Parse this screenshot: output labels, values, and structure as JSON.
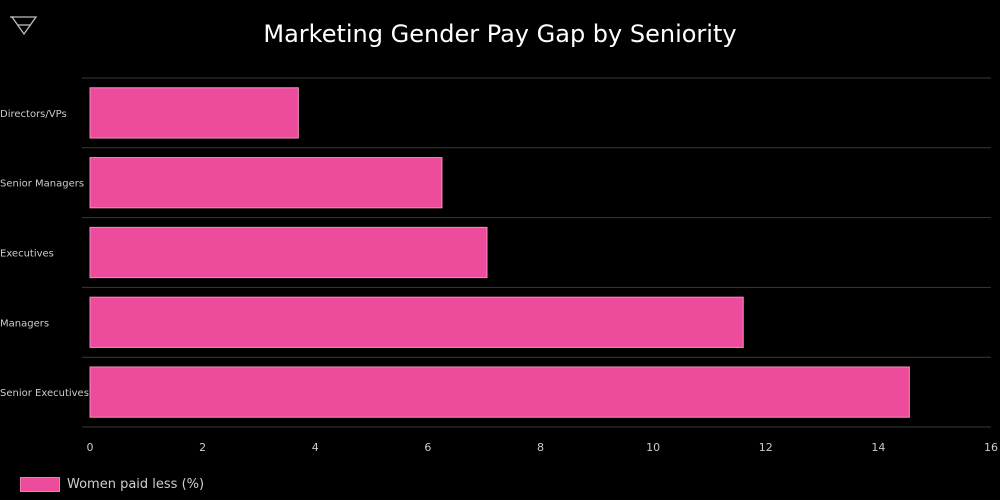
{
  "logo": {
    "icon": "triangle-logo-icon"
  },
  "chart_data": {
    "type": "bar",
    "orientation": "horizontal",
    "title": "Marketing Gender Pay Gap by Seniority",
    "xlabel": "",
    "ylabel": "",
    "categories": [
      "Directors/VPs",
      "Senior Managers",
      "Executives",
      "Managers",
      "Senior Executives"
    ],
    "series": [
      {
        "name": "Women paid less (%)",
        "values": [
          3.7,
          6.25,
          7.05,
          11.6,
          14.55
        ]
      }
    ],
    "xlim": [
      0,
      16
    ],
    "xticks": [
      "0",
      "2",
      "4",
      "6",
      "8",
      "10",
      "12",
      "14",
      "16"
    ],
    "grid": true,
    "legend_position": "bottom-left",
    "colors": {
      "bar": "#ec4c9b",
      "bar_border": "#f48dc0",
      "background": "#000000",
      "grid": "#3a3a3a",
      "text": "#cccccc"
    }
  }
}
